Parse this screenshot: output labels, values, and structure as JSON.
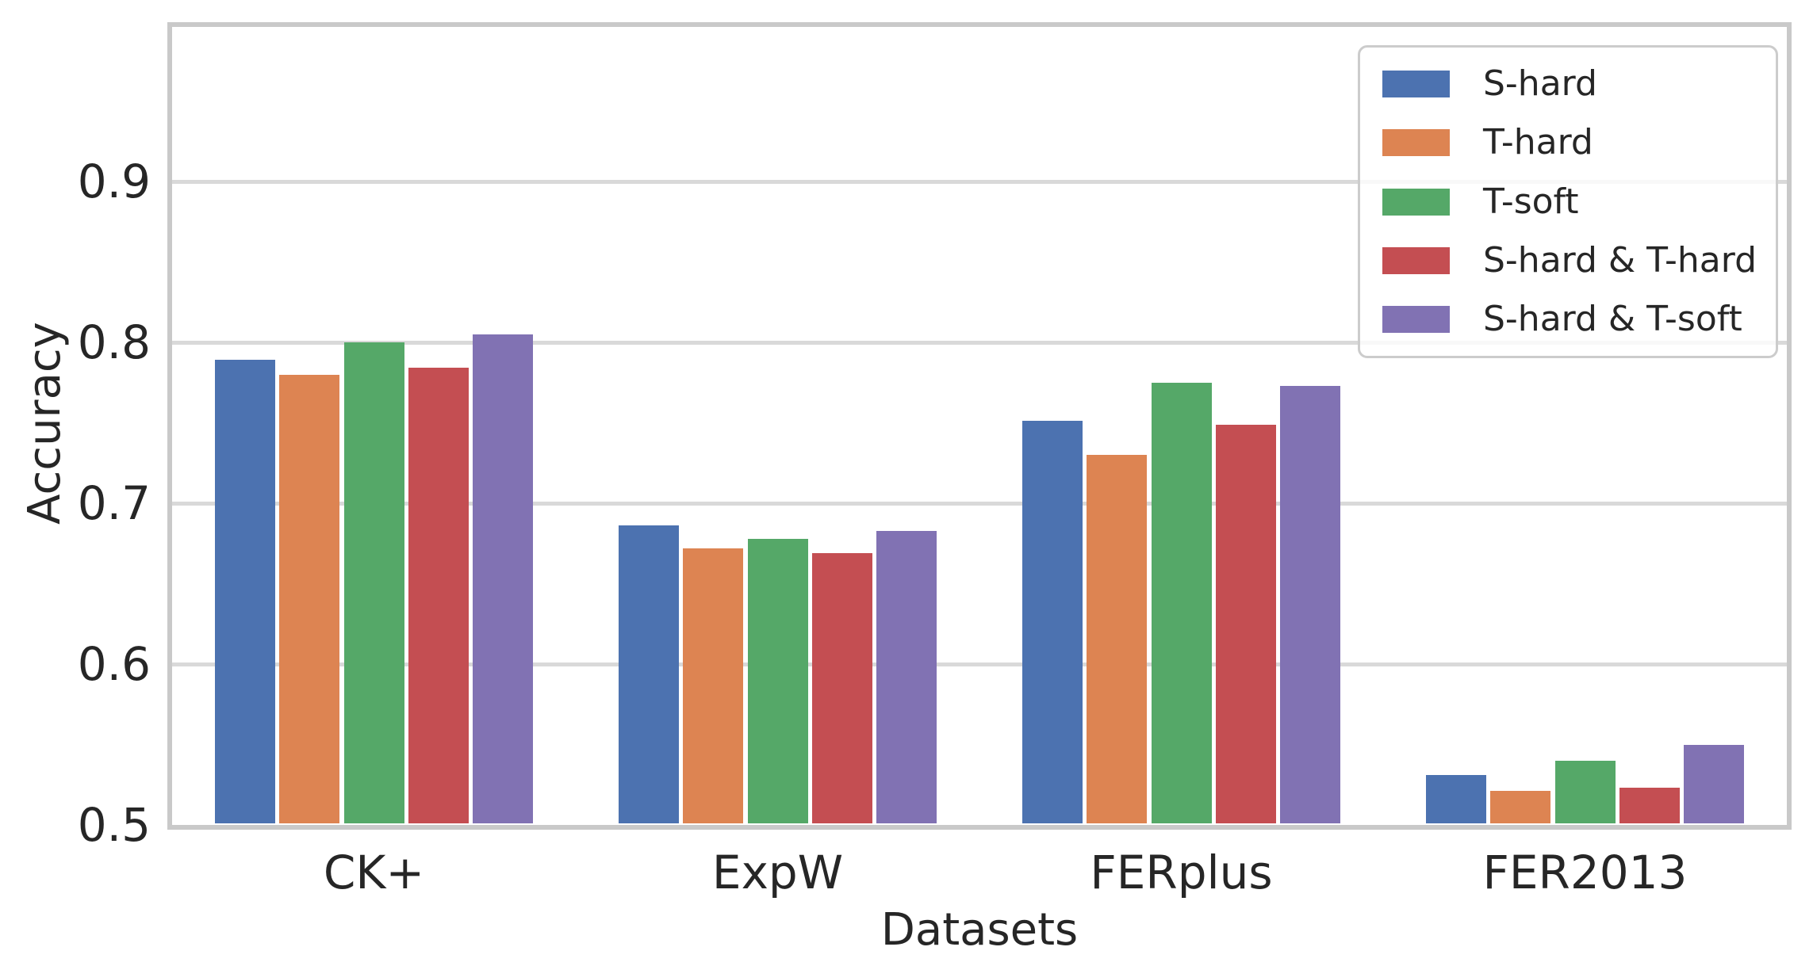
{
  "figure": {
    "background": "#ffffff",
    "text_color": "#262626",
    "grid_color": "#d9d9d9",
    "spine_color": "#c9c9c9"
  },
  "chart_data": {
    "type": "bar",
    "title": "",
    "xlabel": "Datasets",
    "ylabel": "Accuracy",
    "categories": [
      "CK+",
      "ExpW",
      "FERplus",
      "FER2013"
    ],
    "series": [
      {
        "name": "S-hard",
        "color": "#4C72B0",
        "values": [
          0.789,
          0.686,
          0.751,
          0.531
        ]
      },
      {
        "name": "T-hard",
        "color": "#DD8452",
        "values": [
          0.78,
          0.672,
          0.73,
          0.521
        ]
      },
      {
        "name": "T-soft",
        "color": "#55A868",
        "values": [
          0.8,
          0.678,
          0.775,
          0.54
        ]
      },
      {
        "name": "S-hard & T-hard",
        "color": "#C44E52",
        "values": [
          0.784,
          0.669,
          0.749,
          0.523
        ]
      },
      {
        "name": "S-hard & T-soft",
        "color": "#8172B3",
        "values": [
          0.805,
          0.683,
          0.773,
          0.55
        ]
      }
    ],
    "ylim": [
      0.5,
      1.0
    ],
    "yticks": [
      0.5,
      0.6,
      0.7,
      0.8,
      0.9
    ],
    "ytick_labels": [
      "0.5",
      "0.6",
      "0.7",
      "0.8",
      "0.9"
    ],
    "grid": true,
    "legend_position": "upper right"
  }
}
